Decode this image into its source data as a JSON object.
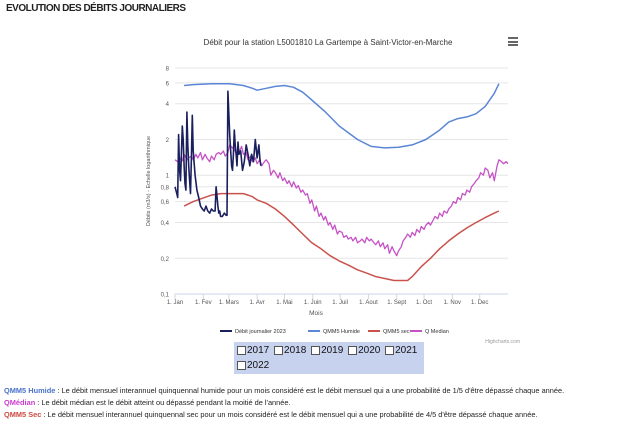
{
  "page": {
    "section_title": "EVOLUTION DES DÉBITS JOURNALIERS"
  },
  "chart_data": {
    "type": "line",
    "title": "Débit pour la station L5001810 La Gartempe à Saint-Victor-en-Marche",
    "xlabel": "Mois",
    "ylabel": "Débits (m3/s) - Echelle logarithmique",
    "yscale": "log",
    "ylim": [
      0.1,
      8
    ],
    "yticks": [
      0.1,
      0.2,
      0.4,
      0.6,
      0.8,
      1,
      2,
      4,
      6,
      8
    ],
    "ytick_labels": [
      "0,1",
      "0,2",
      "0,4",
      "0,6",
      "0,8",
      "1",
      "2",
      "4",
      "6",
      "8"
    ],
    "xlim": [
      0,
      365
    ],
    "xticks": [
      0,
      31,
      59,
      90,
      120,
      151,
      181,
      212,
      243,
      273,
      304,
      334
    ],
    "xtick_labels": [
      "1. Jan",
      "1. Fev",
      "1. Mars",
      "1. Avr",
      "1. Mai",
      "1. Juin",
      "1. Juil",
      "1. Aout",
      "1. Sept",
      "1. Oct",
      "1. Nov",
      "1. Dec"
    ],
    "grid": true,
    "legend_position": "bottom",
    "credit": "Highcharts.com",
    "series": [
      {
        "name": "Débit journalier 2023",
        "color": "#1a1f5e",
        "width": 1.6,
        "x": [
          0,
          2,
          3,
          4,
          5,
          6,
          7,
          8,
          9,
          10,
          11,
          12,
          13,
          14,
          15,
          16,
          17,
          18,
          19,
          20,
          22,
          24,
          26,
          28,
          30,
          32,
          34,
          36,
          38,
          40,
          42,
          44,
          45,
          47,
          48,
          49,
          50,
          52,
          54,
          56,
          57,
          58,
          60,
          62,
          63,
          64,
          65,
          66,
          67,
          68,
          69,
          70,
          72,
          74,
          76,
          78,
          80,
          82,
          84,
          86,
          88,
          90,
          92,
          93,
          94
        ],
        "y": [
          0.8,
          0.7,
          0.65,
          2.2,
          1.1,
          0.9,
          1.5,
          2.6,
          2.0,
          1.2,
          0.85,
          0.75,
          3.4,
          1.8,
          1.2,
          0.9,
          0.7,
          1.4,
          3.2,
          1.6,
          1.0,
          0.75,
          0.65,
          0.55,
          0.52,
          0.5,
          0.55,
          0.5,
          0.48,
          0.52,
          0.5,
          0.5,
          0.8,
          0.55,
          0.48,
          0.5,
          0.45,
          0.45,
          0.48,
          0.46,
          0.46,
          5.1,
          2.2,
          1.2,
          1.1,
          1.5,
          2.4,
          1.8,
          1.5,
          1.2,
          1.9,
          1.5,
          1.6,
          1.1,
          1.3,
          1.8,
          1.5,
          1.2,
          1.5,
          1.3,
          2.0,
          1.4,
          1.8,
          1.4,
          1.2
        ]
      },
      {
        "name": "QMM5 Humide",
        "color": "#5b86d6",
        "width": 1.5,
        "x": [
          10,
          20,
          40,
          60,
          75,
          85,
          90,
          100,
          110,
          120,
          130,
          140,
          150,
          165,
          180,
          200,
          215,
          230,
          245,
          260,
          275,
          290,
          300,
          310,
          320,
          330,
          340,
          350,
          355
        ],
        "y": [
          5.7,
          5.8,
          5.9,
          5.9,
          5.7,
          5.4,
          5.2,
          5.4,
          5.6,
          5.7,
          5.5,
          5.0,
          4.3,
          3.4,
          2.6,
          2.0,
          1.75,
          1.7,
          1.72,
          1.8,
          2.0,
          2.4,
          2.8,
          3.0,
          3.1,
          3.3,
          3.8,
          4.9,
          5.9
        ]
      },
      {
        "name": "QMM5 sec",
        "color": "#c9524d",
        "width": 1.5,
        "x": [
          10,
          20,
          30,
          40,
          50,
          60,
          70,
          75,
          80,
          85,
          90,
          100,
          110,
          120,
          130,
          140,
          150,
          160,
          170,
          180,
          190,
          200,
          210,
          220,
          230,
          240,
          250,
          255,
          260,
          270,
          280,
          290,
          300,
          310,
          320,
          330,
          340,
          350,
          355
        ],
        "y": [
          0.55,
          0.6,
          0.64,
          0.68,
          0.7,
          0.7,
          0.7,
          0.7,
          0.68,
          0.66,
          0.62,
          0.58,
          0.52,
          0.45,
          0.38,
          0.32,
          0.27,
          0.24,
          0.21,
          0.19,
          0.175,
          0.16,
          0.15,
          0.14,
          0.135,
          0.13,
          0.13,
          0.13,
          0.14,
          0.17,
          0.2,
          0.24,
          0.28,
          0.32,
          0.36,
          0.4,
          0.44,
          0.48,
          0.5
        ]
      },
      {
        "name": "Q Median",
        "color": "#c652c6",
        "width": 1.3,
        "x": [
          0,
          3,
          5,
          8,
          10,
          13,
          15,
          18,
          20,
          23,
          25,
          28,
          30,
          33,
          35,
          38,
          40,
          43,
          45,
          48,
          50,
          53,
          55,
          58,
          60,
          63,
          65,
          68,
          70,
          73,
          75,
          78,
          80,
          83,
          85,
          88,
          90,
          93,
          95,
          98,
          100,
          103,
          105,
          108,
          110,
          113,
          115,
          118,
          120,
          123,
          125,
          128,
          130,
          133,
          135,
          138,
          140,
          143,
          145,
          148,
          150,
          153,
          155,
          158,
          160,
          163,
          165,
          168,
          170,
          173,
          175,
          178,
          180,
          183,
          185,
          188,
          190,
          193,
          195,
          198,
          200,
          203,
          205,
          208,
          210,
          213,
          215,
          218,
          220,
          223,
          225,
          228,
          230,
          233,
          235,
          238,
          240,
          243,
          245,
          248,
          250,
          253,
          255,
          258,
          260,
          263,
          265,
          268,
          270,
          273,
          275,
          278,
          280,
          283,
          285,
          288,
          290,
          293,
          295,
          298,
          300,
          303,
          305,
          308,
          310,
          313,
          315,
          318,
          320,
          323,
          325,
          328,
          330,
          333,
          335,
          338,
          340,
          343,
          345,
          348,
          350,
          353,
          355,
          358,
          360,
          363,
          365
        ],
        "y": [
          1.35,
          1.3,
          1.4,
          1.32,
          1.5,
          1.35,
          1.4,
          1.45,
          1.35,
          1.5,
          1.4,
          1.55,
          1.35,
          1.5,
          1.4,
          1.3,
          1.45,
          1.35,
          1.5,
          1.55,
          1.5,
          1.6,
          1.45,
          1.55,
          1.8,
          1.7,
          1.65,
          1.5,
          1.55,
          1.75,
          1.5,
          1.55,
          1.35,
          1.45,
          1.3,
          1.4,
          1.25,
          1.35,
          1.2,
          1.3,
          1.35,
          1.25,
          1.0,
          1.1,
          1.05,
          0.95,
          1.05,
          0.9,
          0.95,
          0.85,
          0.9,
          0.8,
          0.88,
          0.78,
          0.82,
          0.72,
          0.75,
          0.68,
          0.7,
          0.58,
          0.62,
          0.5,
          0.55,
          0.45,
          0.48,
          0.42,
          0.45,
          0.38,
          0.4,
          0.35,
          0.38,
          0.32,
          0.34,
          0.33,
          0.3,
          0.31,
          0.29,
          0.3,
          0.28,
          0.3,
          0.27,
          0.28,
          0.29,
          0.27,
          0.3,
          0.28,
          0.29,
          0.27,
          0.26,
          0.28,
          0.25,
          0.27,
          0.24,
          0.26,
          0.22,
          0.25,
          0.23,
          0.21,
          0.23,
          0.25,
          0.28,
          0.3,
          0.32,
          0.3,
          0.33,
          0.31,
          0.35,
          0.33,
          0.37,
          0.35,
          0.38,
          0.4,
          0.38,
          0.42,
          0.45,
          0.43,
          0.48,
          0.45,
          0.5,
          0.48,
          0.52,
          0.55,
          0.6,
          0.58,
          0.65,
          0.62,
          0.7,
          0.68,
          0.75,
          0.72,
          0.8,
          0.85,
          0.9,
          0.95,
          1.05,
          1.0,
          1.15,
          1.1,
          0.95,
          1.05,
          0.9,
          1.2,
          1.35,
          1.3,
          1.25,
          1.3,
          1.25
        ]
      }
    ]
  },
  "year_selector": [
    {
      "year": "2017"
    },
    {
      "year": "2018"
    },
    {
      "year": "2019"
    },
    {
      "year": "2020"
    },
    {
      "year": "2021"
    },
    {
      "year": "2022"
    }
  ],
  "definitions": [
    {
      "term": "QMM5 Humide",
      "text": " : Le débit mensuel interannuel quinquennal humide pour un mois considéré est le débit mensuel qui a une probabilité de 1/5 d'être dépassé chaque année."
    },
    {
      "term": "QMédian",
      "text": " : Le débit médian est le débit atteint ou dépassé pendant la moitié de l'année."
    },
    {
      "term": "QMM5 Sec",
      "text": " : Le débit mensuel interannuel quinquennal sec pour un mois considéré est le débit mensuel qui a une probabilité de 4/5 d'être dépassé chaque année."
    }
  ]
}
